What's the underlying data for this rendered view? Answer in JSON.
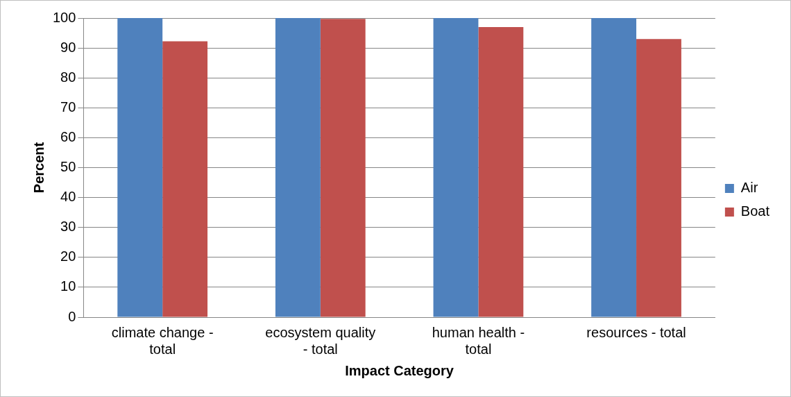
{
  "chart_data": {
    "type": "bar",
    "xlabel": "Impact Category",
    "ylabel": "Percent",
    "categories": [
      "climate change - total",
      "ecosystem quality - total",
      "human health - total",
      "resources - total"
    ],
    "series": [
      {
        "name": "Air",
        "color": "#4f81bd",
        "values": [
          100,
          100,
          100,
          100
        ]
      },
      {
        "name": "Boat",
        "color": "#c0504d",
        "values": [
          92.2,
          99.7,
          97.0,
          93.0
        ]
      }
    ],
    "ylim": [
      0,
      100
    ],
    "yticks": [
      0,
      10,
      20,
      30,
      40,
      50,
      60,
      70,
      80,
      90,
      100
    ],
    "grid": "y",
    "legend": "right"
  }
}
